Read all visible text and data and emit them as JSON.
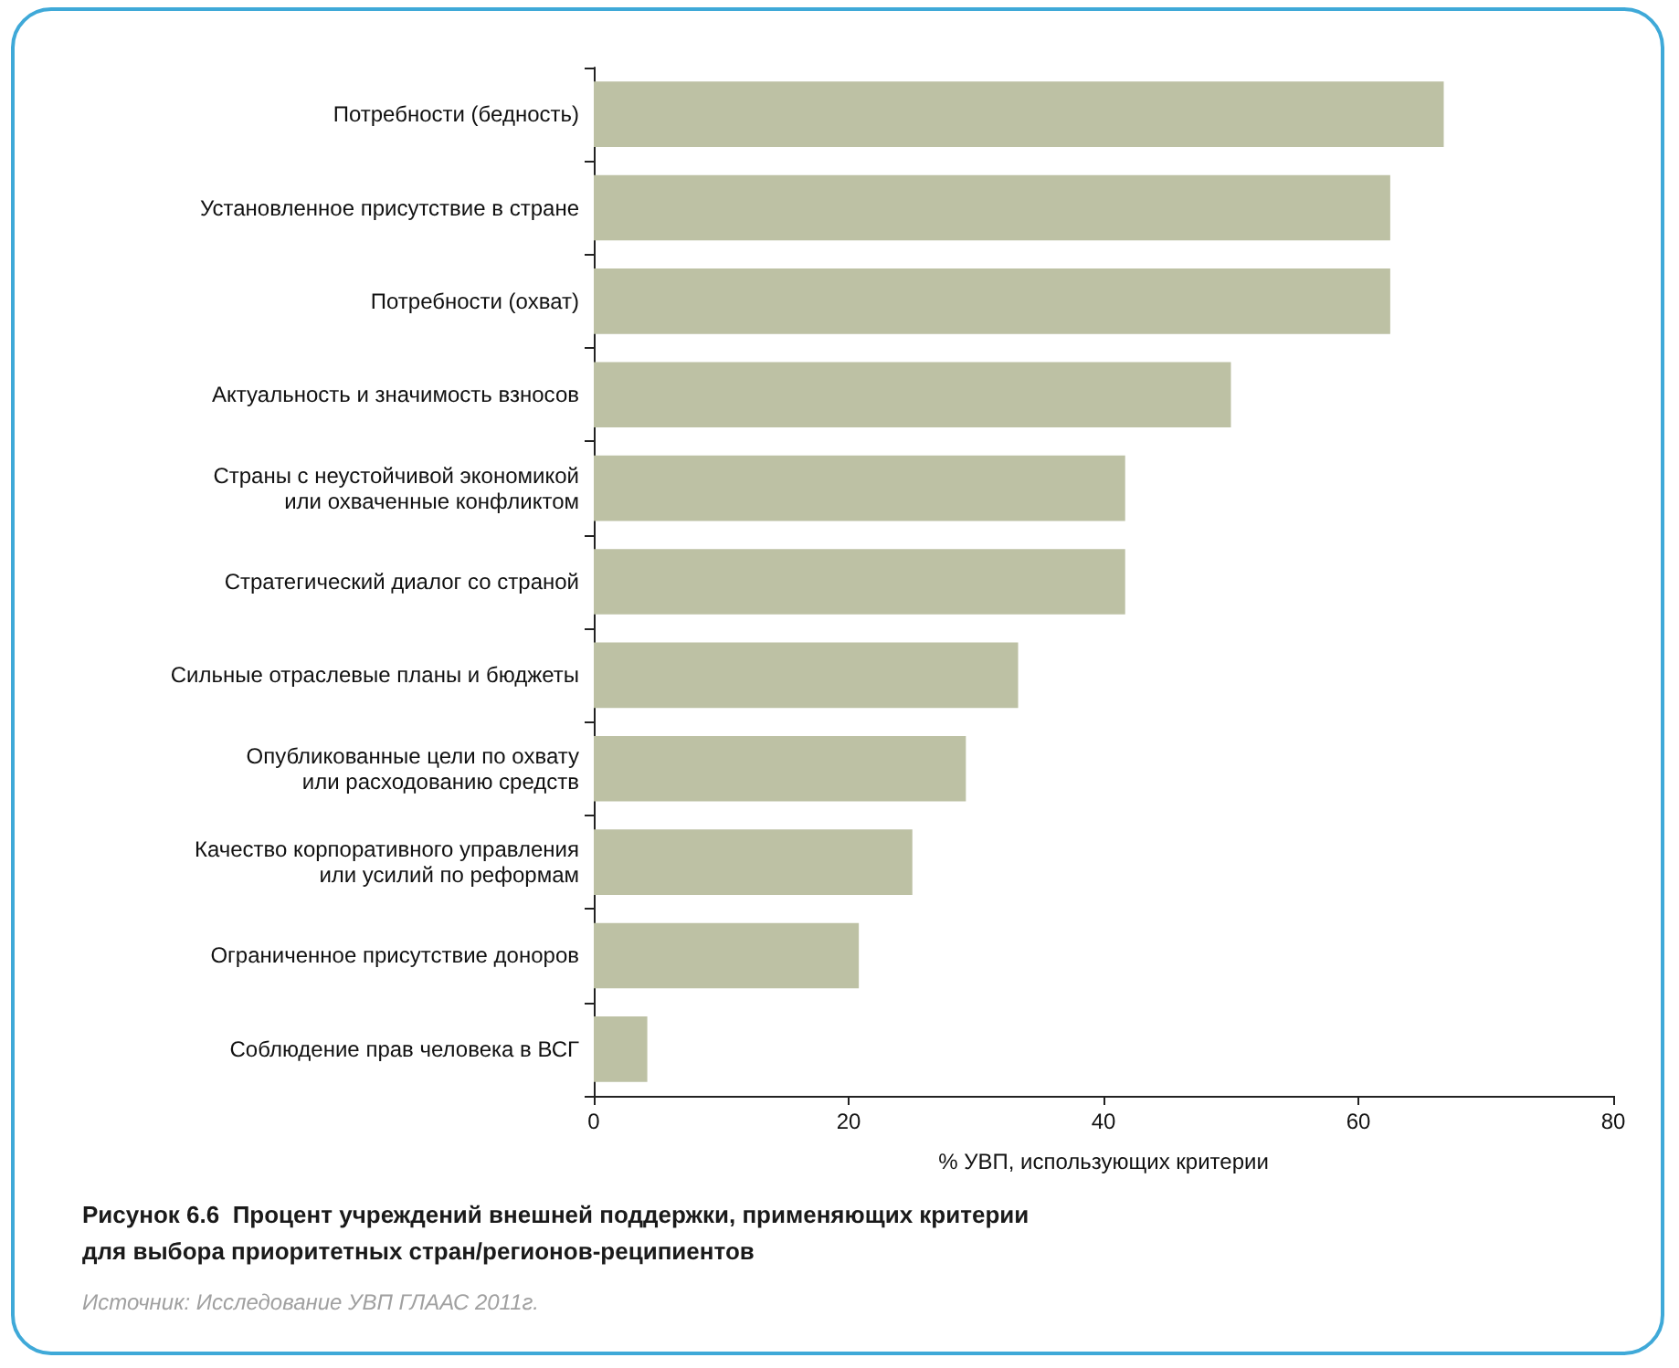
{
  "chart_data": {
    "type": "bar",
    "orientation": "horizontal",
    "title": "Рисунок 6.6  Процент учреждений внешней поддержки, применяющих критерии для выбора приоритетных стран/регионов-реципиентов",
    "xlabel": "% УВП, использующих критерии",
    "categories": [
      "Потребности (бедность)",
      "Установленное присутствие в стране",
      "Потребности (охват)",
      "Актуальность и значимость взносов",
      "Страны с неустойчивой экономикой\nили охваченные конфликтом",
      "Стратегический диалог со страной",
      "Сильные отраслевые планы и бюджеты",
      "Опубликованные цели по охвату\nили расходованию средств",
      "Качество корпоративного управления\nили усилий по реформам",
      "Ограниченное присутствие доноров",
      "Соблюдение прав человека в ВСГ"
    ],
    "values": [
      66.7,
      62.5,
      62.5,
      50.0,
      41.7,
      41.7,
      33.3,
      29.2,
      25.0,
      20.8,
      4.2
    ],
    "color": "#bdc1a4",
    "xlim": [
      0,
      80
    ],
    "xticks": [
      0,
      20,
      40,
      60,
      80
    ],
    "grid": false,
    "annotations": [
      "Источник: Исследование УВП ГЛААС 2011г."
    ]
  }
}
